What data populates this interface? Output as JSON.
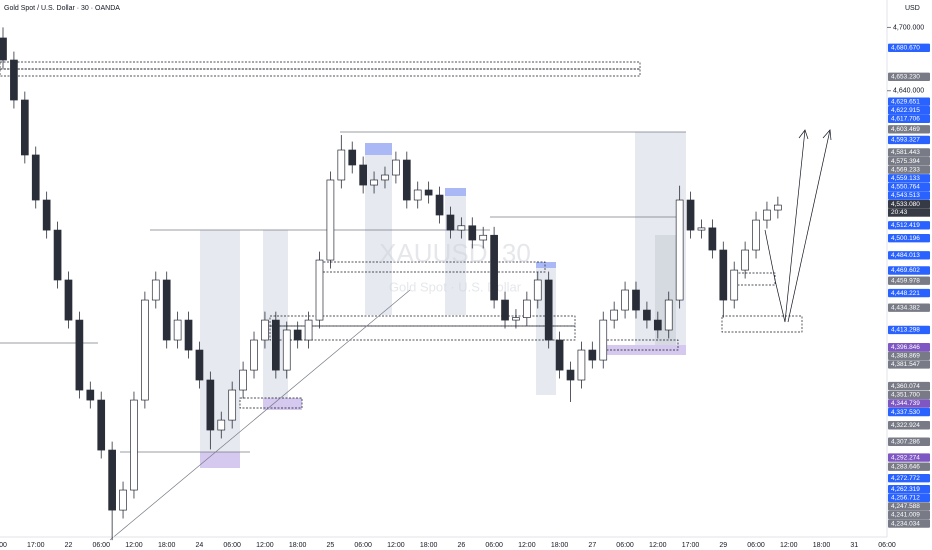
{
  "chart_data": {
    "type": "candlestick",
    "title": "Gold Spot / U.S. Dollar · 30 · OANDA",
    "currency": "USD",
    "watermark": "XAUUSD, 30",
    "watermark_subtitle": "Gold Spot · U.S. Dollar",
    "countdown": "20:43",
    "up_color": "#ffffff",
    "down_color": "#2a2e39",
    "wick_color": "#2a2e39",
    "ylim": [
      4217,
      4726
    ],
    "yticks": [
      {
        "value": 4700,
        "label": "4,700.000"
      },
      {
        "value": 4640,
        "label": "4,640.000"
      }
    ],
    "categories": [
      "00",
      null,
      null,
      "17:00",
      null,
      null,
      "22",
      null,
      null,
      "06:00",
      null,
      null,
      "12:00",
      null,
      null,
      "18:00",
      null,
      null,
      "24",
      null,
      null,
      "06:00",
      null,
      null,
      "12:00",
      null,
      null,
      "18:00",
      null,
      null,
      "25",
      null,
      null,
      "06:00",
      null,
      null,
      "12:00",
      null,
      null,
      "18:00",
      null,
      null,
      "26",
      null,
      null,
      "06:00",
      null,
      null,
      "12:00",
      null,
      null,
      "18:00",
      null,
      null,
      "27",
      null,
      null,
      "06:00",
      null,
      null,
      "12:00",
      null,
      null,
      "17:00",
      null,
      null,
      "29",
      null,
      null,
      "06:00",
      null,
      null,
      "12:00",
      null,
      null,
      "18:00",
      null,
      null,
      "31",
      null,
      null,
      "06:00",
      null,
      null
    ],
    "open": [
      4690,
      4669.1,
      4631.2,
      4579.1,
      4536.4,
      4507.9,
      4460.6,
      4422.6,
      4356.3,
      4346.8,
      4299.4,
      4242.5,
      4261.5,
      4346.8,
      4441.6,
      4460.6,
      4403.7,
      4422.6,
      4394.2,
      4365.8,
      4318.4,
      4327.8,
      4356.3,
      4375.2,
      4403.7,
      4422.6,
      4375.2,
      4413.2,
      4403.7,
      4422.6,
      4479.5,
      4555.4,
      4583.8,
      4569.6,
      4550.6,
      4555.4,
      4560.1,
      4574.3,
      4536.4,
      4545.9,
      4541.1,
      4522.2,
      4507.9,
      4512.0,
      4498.5,
      4503.0,
      4441.6,
      4422.6,
      4425.0,
      4441.6,
      4460.6,
      4403.7,
      4375.2,
      4365.8,
      4394.2,
      4384.7,
      4422.6,
      4432.1,
      4451.1,
      4432.1,
      4422.6,
      4413.2,
      4441.6,
      4536.4,
      4507.9,
      4510.0,
      4489.0,
      4441.6,
      4470.0,
      4489.0,
      4517.4,
      4526.9,
      null,
      null,
      null,
      null,
      null,
      null,
      null,
      null,
      null,
      null,
      null,
      null
    ],
    "high": [
      4700,
      4677.1,
      4639.2,
      4587.1,
      4544.4,
      4515.9,
      4468.6,
      4430.6,
      4364.3,
      4354.8,
      4307.4,
      4269.5,
      4354.8,
      4449.6,
      4468.6,
      4468.6,
      4430.6,
      4430.6,
      4402.2,
      4373.8,
      4335.8,
      4364.3,
      4383.2,
      4411.7,
      4430.6,
      4430.6,
      4421.2,
      4421.2,
      4430.6,
      4487.5,
      4563.4,
      4598,
      4591.8,
      4577.6,
      4563.4,
      4568.1,
      4582.3,
      4582.3,
      4553.9,
      4553.9,
      4549.1,
      4530.2,
      4520.0,
      4520.0,
      4511.0,
      4511.0,
      4449.6,
      4433.0,
      4449.6,
      4468.6,
      4468.6,
      4411.7,
      4383.2,
      4402.2,
      4402.2,
      4430.6,
      4440.1,
      4459.1,
      4459.1,
      4440.1,
      4430.6,
      4449.6,
      4550,
      4544.4,
      4518.0,
      4518.0,
      4497.0,
      4478.0,
      4497.0,
      4525.4,
      4534.9,
      4539.6,
      null,
      null,
      null,
      null,
      null,
      null,
      null,
      null,
      null,
      null,
      null,
      null
    ],
    "low": [
      4661.1,
      4623.2,
      4571.1,
      4528.4,
      4499.9,
      4452.6,
      4414.6,
      4348.3,
      4338.8,
      4291.4,
      4214,
      4234.5,
      4253.5,
      4338.8,
      4433.6,
      4395.7,
      4395.7,
      4386.2,
      4357.8,
      4300,
      4310.4,
      4319.8,
      4348.3,
      4367.2,
      4395.7,
      4367.2,
      4367.2,
      4395.7,
      4395.7,
      4414.6,
      4471.5,
      4547.4,
      4561.6,
      4542.6,
      4542.6,
      4547.4,
      4552.1,
      4528.4,
      4528.4,
      4533.1,
      4514.2,
      4499.9,
      4499.9,
      4490.5,
      4490.5,
      4433.6,
      4414.6,
      4414.6,
      4417.0,
      4433.6,
      4395.7,
      4367.2,
      4345,
      4357.8,
      4376.7,
      4376.7,
      4414.6,
      4424.1,
      4424.1,
      4414.6,
      4405.2,
      4405.2,
      4433.6,
      4499.9,
      4499.9,
      4481.0,
      4425,
      4433.6,
      4462.0,
      4481.0,
      4509.4,
      4518.9,
      null,
      null,
      null,
      null,
      null,
      null,
      null,
      null,
      null,
      null,
      null,
      null
    ],
    "close": [
      4669.1,
      4631.2,
      4579.1,
      4536.4,
      4507.9,
      4460.6,
      4422.6,
      4356.3,
      4346.8,
      4299.4,
      4242.5,
      4261.5,
      4346.8,
      4441.6,
      4460.6,
      4403.7,
      4422.6,
      4394.2,
      4365.8,
      4318.4,
      4327.8,
      4356.3,
      4375.2,
      4403.7,
      4422.6,
      4375.2,
      4413.2,
      4403.7,
      4422.6,
      4479.5,
      4555.4,
      4583.8,
      4569.6,
      4550.6,
      4555.4,
      4560.1,
      4574.3,
      4536.4,
      4545.9,
      4541.1,
      4522.2,
      4507.9,
      4512.0,
      4498.5,
      4503.0,
      4441.6,
      4422.6,
      4425.0,
      4441.6,
      4460.6,
      4403.7,
      4375.2,
      4365.8,
      4394.2,
      4384.7,
      4422.6,
      4432.1,
      4451.1,
      4432.1,
      4422.6,
      4413.2,
      4441.6,
      4536.4,
      4507.9,
      4510.0,
      4489.0,
      4441.6,
      4470.0,
      4489.0,
      4517.4,
      4526.9,
      4531.6,
      null,
      null,
      null,
      null,
      null,
      null,
      null,
      null,
      null,
      null,
      null,
      null
    ],
    "price_labels": [
      {
        "value": 4680.67,
        "label": "4,680.670",
        "color": "#2962ff"
      },
      {
        "value": 4653.23,
        "label": "4,653.230",
        "color": "#787b86"
      },
      {
        "value": 4629.651,
        "label": "4,629.651",
        "color": "#2962ff"
      },
      {
        "value": 4622.915,
        "label": "4,622.915",
        "color": "#2962ff"
      },
      {
        "value": 4617.706,
        "label": "4,617.706",
        "color": "#2962ff"
      },
      {
        "value": 4603.469,
        "label": "4,603.469",
        "color": "#787b86"
      },
      {
        "value": 4593.327,
        "label": "4,593.327",
        "color": "#2962ff"
      },
      {
        "value": 4581.443,
        "label": "4,581.443",
        "color": "#787b86"
      },
      {
        "value": 4575.394,
        "label": "4,575.394",
        "color": "#787b86"
      },
      {
        "value": 4569.233,
        "label": "4,569.233",
        "color": "#787b86"
      },
      {
        "value": 4559.133,
        "label": "4,559.133",
        "color": "#2962ff"
      },
      {
        "value": 4550.764,
        "label": "4,550.764",
        "color": "#2962ff"
      },
      {
        "value": 4543.513,
        "label": "4,543.513",
        "color": "#2962ff"
      },
      {
        "value": 4533.08,
        "label": "4,533.080",
        "color": "#363a45"
      },
      {
        "value": 4512.419,
        "label": "4,512.419",
        "color": "#2962ff"
      },
      {
        "value": 4500.196,
        "label": "4,500.196",
        "color": "#2962ff"
      },
      {
        "value": 4484.013,
        "label": "4,484.013",
        "color": "#2962ff"
      },
      {
        "value": 4469.602,
        "label": "4,469.602",
        "color": "#2962ff"
      },
      {
        "value": 4459.978,
        "label": "4,459.978",
        "color": "#787b86"
      },
      {
        "value": 4448.221,
        "label": "4,448.221",
        "color": "#2962ff"
      },
      {
        "value": 4434.382,
        "label": "4,434.382",
        "color": "#787b86"
      },
      {
        "value": 4413.298,
        "label": "4,413.298",
        "color": "#2962ff"
      },
      {
        "value": 4396.846,
        "label": "4,396.846",
        "color": "#7e57c2"
      },
      {
        "value": 4388.869,
        "label": "4,388.869",
        "color": "#787b86"
      },
      {
        "value": 4381.547,
        "label": "4,381.547",
        "color": "#787b86"
      },
      {
        "value": 4360.074,
        "label": "4,360.074",
        "color": "#787b86"
      },
      {
        "value": 4351.7,
        "label": "4,351.700",
        "color": "#787b86"
      },
      {
        "value": 4344.739,
        "label": "4,344.739",
        "color": "#7e57c2"
      },
      {
        "value": 4337.53,
        "label": "4,337.530",
        "color": "#2962ff"
      },
      {
        "value": 4322.924,
        "label": "4,322.924",
        "color": "#787b86"
      },
      {
        "value": 4307.286,
        "label": "4,307.286",
        "color": "#787b86"
      },
      {
        "value": 4292.274,
        "label": "4,292.274",
        "color": "#7e57c2"
      },
      {
        "value": 4283.646,
        "label": "4,283.646",
        "color": "#787b86"
      },
      {
        "value": 4272.772,
        "label": "4,272.772",
        "color": "#2962ff"
      },
      {
        "value": 4262.319,
        "label": "4,262.319",
        "color": "#2962ff"
      },
      {
        "value": 4256.712,
        "label": "4,256.712",
        "color": "#2962ff"
      },
      {
        "value": 4247.588,
        "label": "4,247.588",
        "color": "#787b86"
      },
      {
        "value": 4241.009,
        "label": "4,241.009",
        "color": "#787b86"
      },
      {
        "value": 4234.034,
        "label": "4,234.034",
        "color": "#787b86"
      }
    ]
  }
}
